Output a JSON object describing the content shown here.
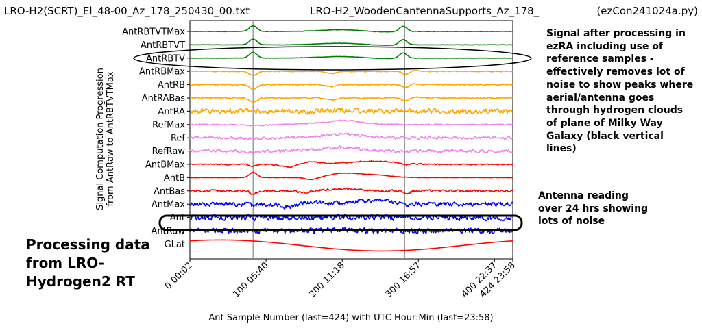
{
  "header": {
    "left": "LRO-H2(SCRT)_El_48-00_Az_178_250430_00.txt",
    "center": "LRO-H2_WoodenCantennaSupports_Az_178_",
    "right": "(ezCon241024a.py)"
  },
  "annotations": {
    "right": "Signal after processing in ezRA including use of reference samples - effectively removes lot of noise to show peaks where aerial/antenna goes through hydrogen clouds of plane of Milky Way Galaxy (black vertical lines)",
    "ant": "Antenna reading over 24 hrs showing lots of noise",
    "left": "Processing data from LRO-Hydrogen2 RT"
  },
  "chart_data": {
    "type": "line",
    "ylabel_line1": "Signal Computation Progression",
    "ylabel_line2": "from AntRaw to AntRBTVTMax",
    "xlabel": "Ant Sample Number (last=424) with UTC Hour:Min (last=23:58)",
    "xlim": [
      0,
      424
    ],
    "xticks": [
      {
        "value": 0,
        "label": "0 00:02"
      },
      {
        "value": 100,
        "label": "100 05:40"
      },
      {
        "value": 200,
        "label": "200 11:18"
      },
      {
        "value": 300,
        "label": "300 16:57"
      },
      {
        "value": 400,
        "label": "400 22:37"
      },
      {
        "value": 424,
        "label": "424 23:58"
      }
    ],
    "galactic_plane_crossings": [
      83,
      282
    ],
    "series": [
      {
        "name": "AntRBTVTMax",
        "color": "#008000",
        "noise": 0.15,
        "shape": "processed"
      },
      {
        "name": "AntRBTVT",
        "color": "#008000",
        "noise": 0.12,
        "shape": "processed"
      },
      {
        "name": "AntRBTV",
        "color": "#008000",
        "noise": 0.12,
        "shape": "processed"
      },
      {
        "name": "AntRBMax",
        "color": "#ffa500",
        "noise": 0.3,
        "shape": "dip"
      },
      {
        "name": "AntRB",
        "color": "#ffa500",
        "noise": 0.4,
        "shape": "dip"
      },
      {
        "name": "AntRABas",
        "color": "#ffa500",
        "noise": 0.5,
        "shape": "dip"
      },
      {
        "name": "AntRA",
        "color": "#ffa500",
        "noise": 2.0,
        "shape": "flat"
      },
      {
        "name": "RefMax",
        "color": "#ee82ee",
        "noise": 0.4,
        "shape": "hump"
      },
      {
        "name": "Ref",
        "color": "#ee82ee",
        "noise": 1.0,
        "shape": "hump"
      },
      {
        "name": "RefRaw",
        "color": "#ee82ee",
        "noise": 1.2,
        "shape": "hump"
      },
      {
        "name": "AntBMax",
        "color": "#ff0000",
        "noise": 0.4,
        "shape": "wave"
      },
      {
        "name": "AntB",
        "color": "#ff0000",
        "noise": 0.15,
        "shape": "bump"
      },
      {
        "name": "AntBas",
        "color": "#ff0000",
        "noise": 0.8,
        "shape": "bas"
      },
      {
        "name": "AntMax",
        "color": "#0000ff",
        "noise": 1.6,
        "shape": "wave"
      },
      {
        "name": "Ant",
        "color": "#0000ff",
        "noise": 2.2,
        "shape": "flat"
      },
      {
        "name": "AntRaw",
        "color": "#0000ff",
        "noise": 2.0,
        "shape": "flat"
      },
      {
        "name": "GLat",
        "color": "#ff0000",
        "noise": 0.0,
        "shape": "glat"
      }
    ]
  }
}
